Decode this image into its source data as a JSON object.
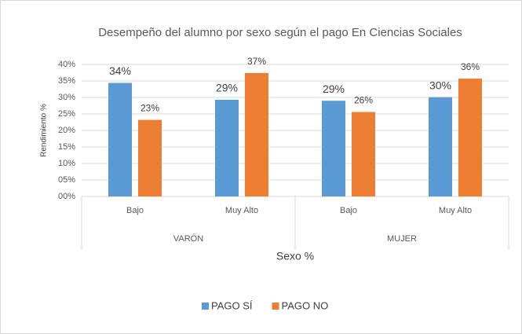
{
  "chart_data": {
    "type": "bar",
    "title": "Desempeño del alumno por sexo según el pago En Ciencias Sociales",
    "x_label": "Sexo %",
    "y_label": "Rendimiento %",
    "categories": [
      "Bajo",
      "Muy Alto",
      "Bajo",
      "Muy Alto"
    ],
    "groups": [
      "VARÓN",
      "MUJER"
    ],
    "series": [
      {
        "name": "PAGO SÍ",
        "color": "#5b9bd5",
        "values": [
          34.4,
          29.3,
          29.0,
          30.1
        ],
        "value_labels": [
          "34%",
          "29%",
          "29%",
          "30%"
        ]
      },
      {
        "name": "PAGO NO",
        "color": "#ed7d31",
        "values": [
          23.2,
          37.4,
          25.6,
          35.7
        ],
        "value_labels": [
          "23%",
          "37%",
          "26%",
          "36%"
        ]
      }
    ],
    "ylim": [
      0,
      40
    ],
    "yticks": [
      {
        "value": 0,
        "label": "00%"
      },
      {
        "value": 5,
        "label": "05%"
      },
      {
        "value": 10,
        "label": "10%"
      },
      {
        "value": 15,
        "label": "15%"
      },
      {
        "value": 20,
        "label": "20%"
      },
      {
        "value": 25,
        "label": "25%"
      },
      {
        "value": 30,
        "label": "30%"
      },
      {
        "value": 35,
        "label": "35%"
      },
      {
        "value": 40,
        "label": "40%"
      }
    ],
    "grid": true,
    "legend": "bottom"
  }
}
